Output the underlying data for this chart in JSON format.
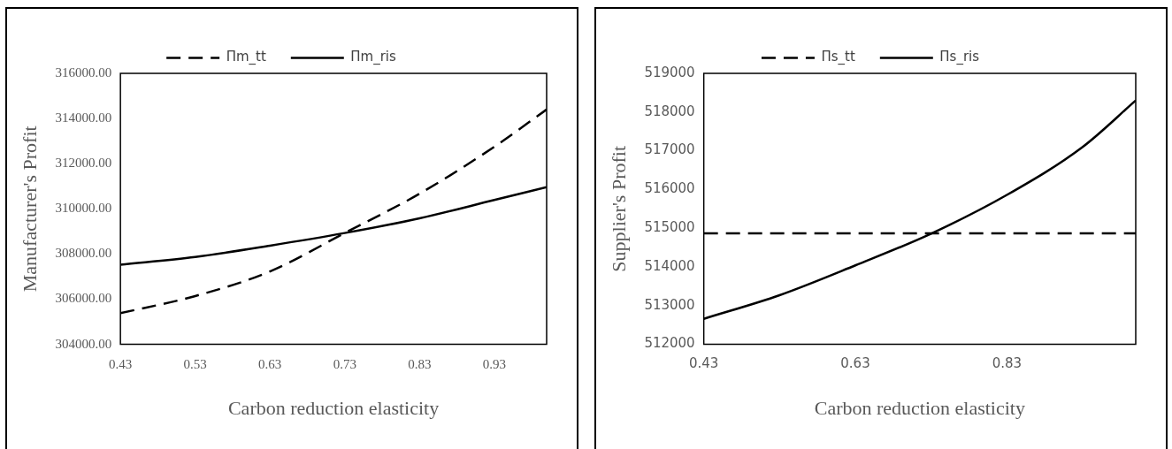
{
  "chart_data": [
    {
      "type": "line",
      "xlabel": "Carbon reduction elasticity",
      "ylabel": "Manufacturer's Profit",
      "legend": "top",
      "x": [
        0.43,
        0.53,
        0.63,
        0.73,
        0.83,
        0.93,
        1.0
      ],
      "series": [
        {
          "name": "Πm_tt",
          "color": "#000000",
          "line_style": "dashed",
          "values": [
            305380,
            306140,
            307230,
            308930,
            310670,
            312750,
            314400
          ]
        },
        {
          "name": "Πm_ris",
          "color": "#000000",
          "line_style": "solid",
          "values": [
            307530,
            307870,
            308370,
            308930,
            309580,
            310390,
            310960
          ]
        }
      ],
      "xlim": [
        0.43,
        1.0
      ],
      "xticks": [
        0.43,
        0.53,
        0.63,
        0.73,
        0.83,
        0.93
      ],
      "ylim": [
        304000,
        316000
      ],
      "yticks": [
        {
          "value": 304000,
          "label": "304000.00"
        },
        {
          "value": 306000,
          "label": "306000.00"
        },
        {
          "value": 308000,
          "label": "308000.00"
        },
        {
          "value": 310000,
          "label": "310000.00"
        },
        {
          "value": 312000,
          "label": "312000.00"
        },
        {
          "value": 314000,
          "label": "314000.00"
        },
        {
          "value": 316000,
          "label": "316000.00"
        }
      ]
    },
    {
      "type": "line",
      "xlabel": "Carbon reduction elasticity",
      "ylabel": "Supplier's Profit",
      "legend": "top",
      "x": [
        0.43,
        0.53,
        0.63,
        0.73,
        0.83,
        0.93,
        1.0
      ],
      "series": [
        {
          "name": "Πs_tt",
          "color": "#000000",
          "line_style": "dashed",
          "values": [
            514870,
            514870,
            514870,
            514870,
            514870,
            514870,
            514870
          ]
        },
        {
          "name": "Πs_ris",
          "color": "#000000",
          "line_style": "solid",
          "values": [
            512660,
            513270,
            514040,
            514860,
            515860,
            517100,
            518300
          ]
        }
      ],
      "xlim": [
        0.43,
        1.0
      ],
      "xticks": [
        0.43,
        0.63,
        0.83
      ],
      "ylim": [
        512000,
        519000
      ],
      "yticks": [
        512000,
        513000,
        514000,
        515000,
        516000,
        517000,
        518000,
        519000
      ]
    }
  ]
}
